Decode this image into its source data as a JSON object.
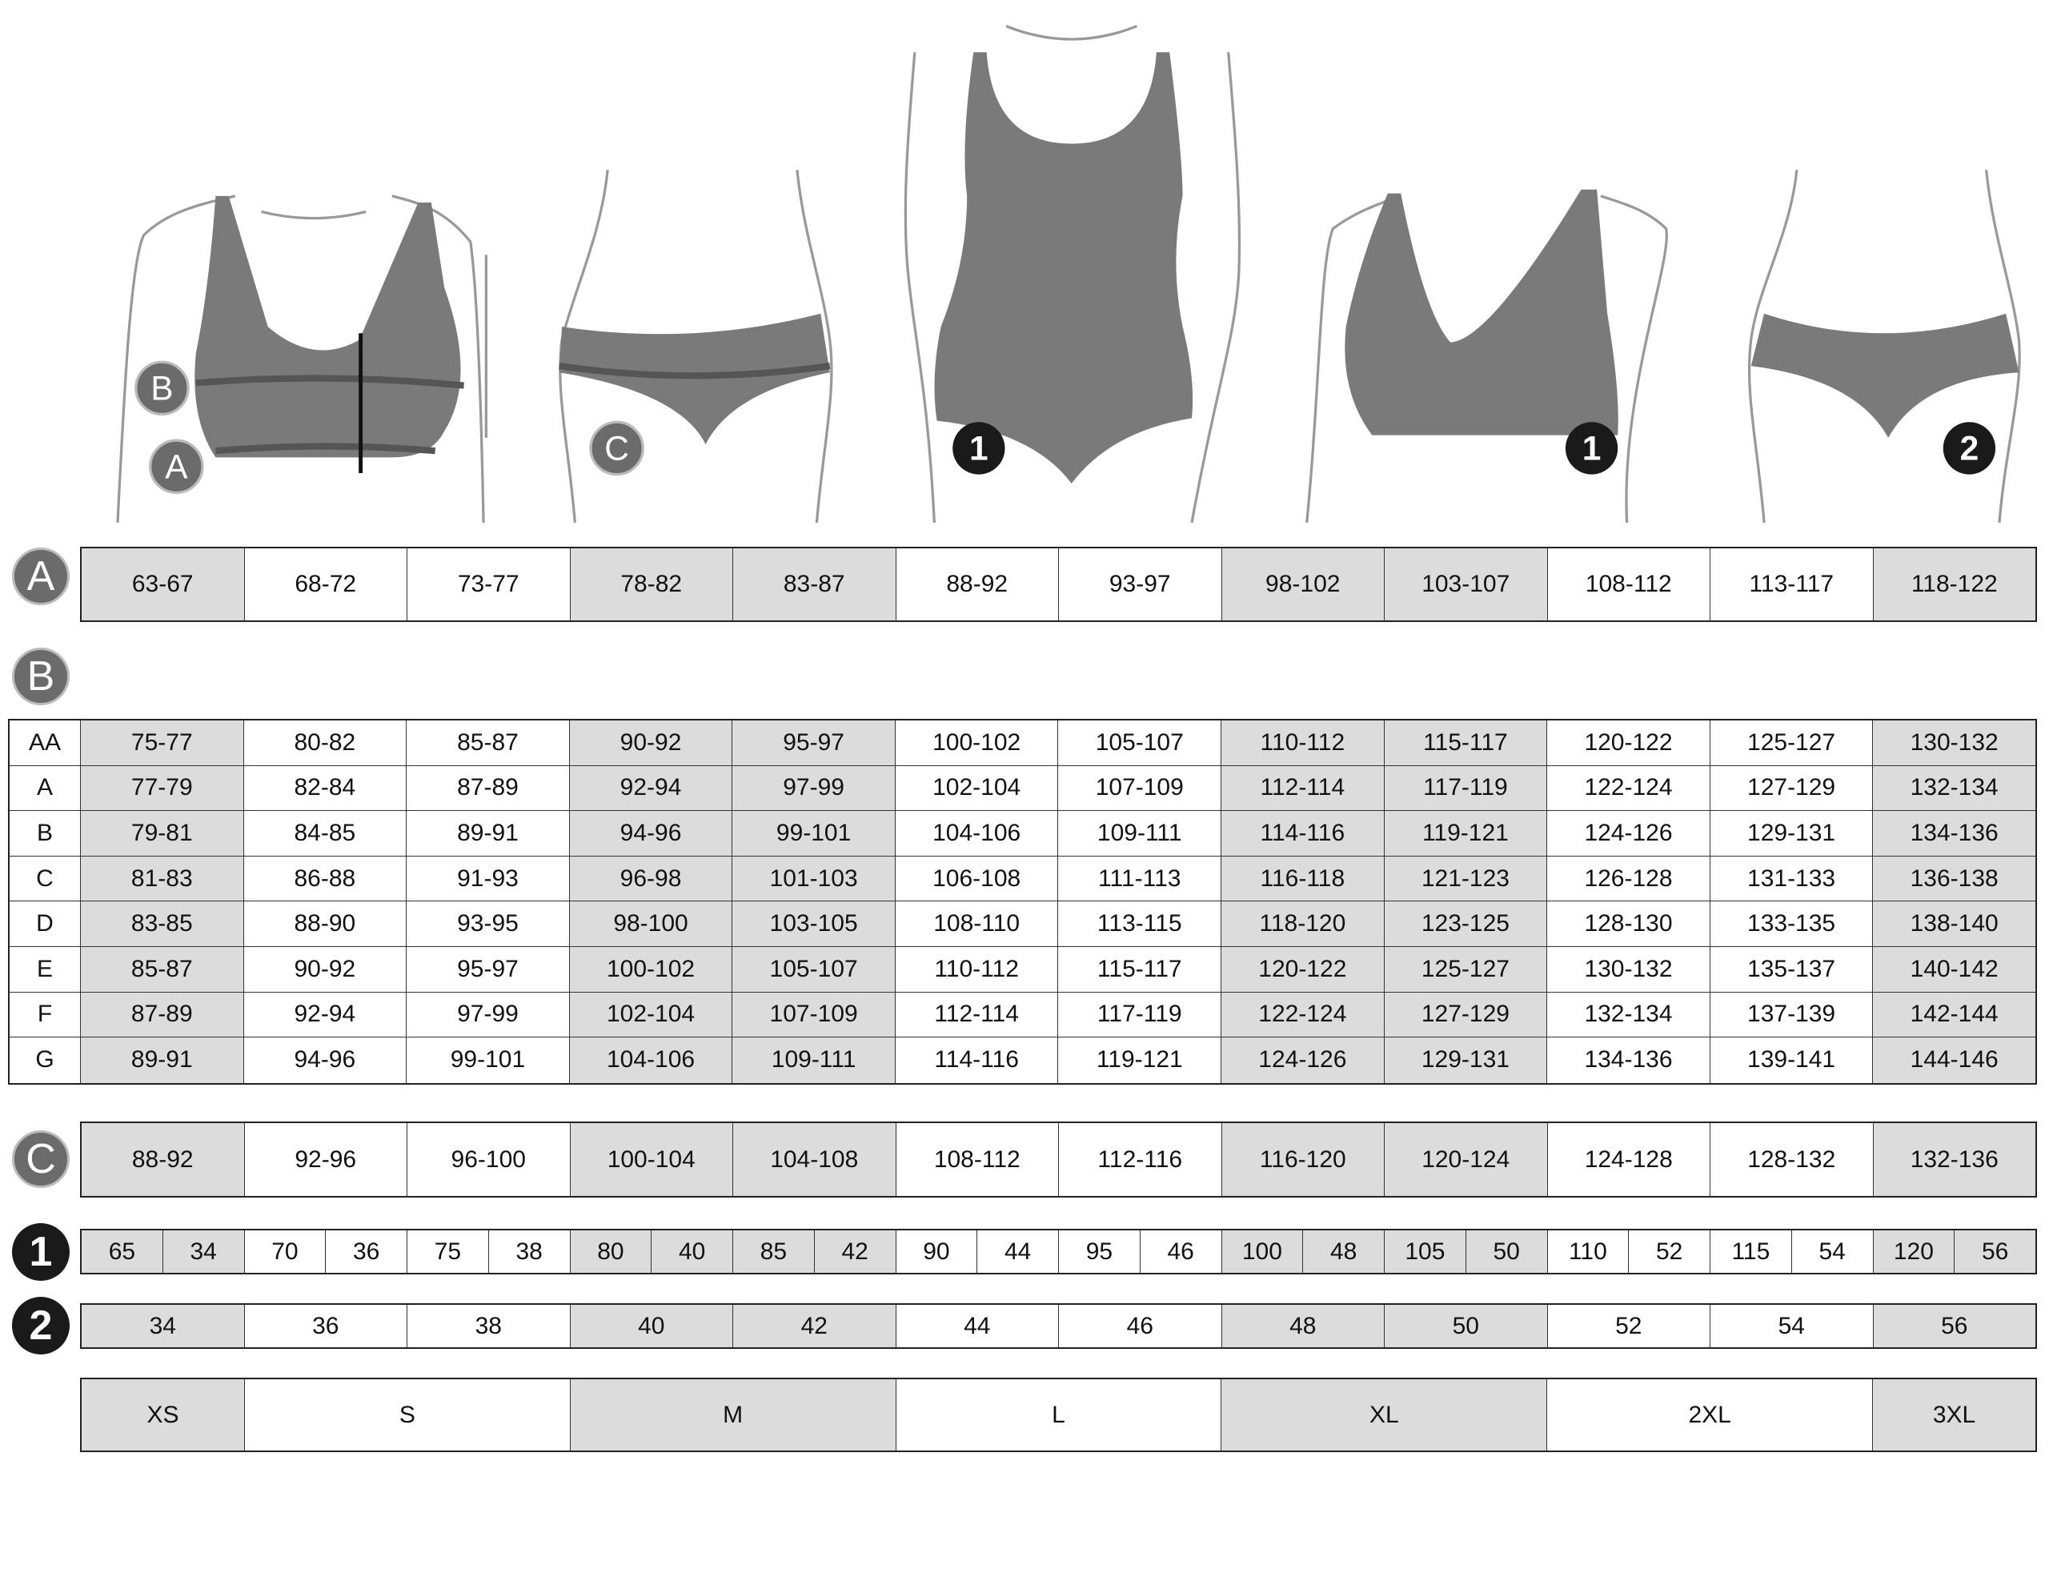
{
  "badges": {
    "a": "A",
    "b": "B",
    "c": "C",
    "one": "1",
    "two": "2"
  },
  "illustration_badges": [
    "B",
    "A",
    "C",
    "1",
    "1",
    "2"
  ],
  "colors": {
    "shaded_cell": "#dcdcdc",
    "garment": "#7a7a7a",
    "badge_gray": "#6b6b6b",
    "badge_black": "#1a1a1a"
  },
  "shaded_columns": [
    0,
    3,
    4,
    7,
    8,
    11
  ],
  "row_a": [
    "63-67",
    "68-72",
    "73-77",
    "78-82",
    "83-87",
    "88-92",
    "93-97",
    "98-102",
    "103-107",
    "108-112",
    "113-117",
    "118-122"
  ],
  "table_b": [
    {
      "cup": "AA",
      "values": [
        "75-77",
        "80-82",
        "85-87",
        "90-92",
        "95-97",
        "100-102",
        "105-107",
        "110-112",
        "115-117",
        "120-122",
        "125-127",
        "130-132"
      ]
    },
    {
      "cup": "A",
      "values": [
        "77-79",
        "82-84",
        "87-89",
        "92-94",
        "97-99",
        "102-104",
        "107-109",
        "112-114",
        "117-119",
        "122-124",
        "127-129",
        "132-134"
      ]
    },
    {
      "cup": "B",
      "values": [
        "79-81",
        "84-85",
        "89-91",
        "94-96",
        "99-101",
        "104-106",
        "109-111",
        "114-116",
        "119-121",
        "124-126",
        "129-131",
        "134-136"
      ]
    },
    {
      "cup": "C",
      "values": [
        "81-83",
        "86-88",
        "91-93",
        "96-98",
        "101-103",
        "106-108",
        "111-113",
        "116-118",
        "121-123",
        "126-128",
        "131-133",
        "136-138"
      ]
    },
    {
      "cup": "D",
      "values": [
        "83-85",
        "88-90",
        "93-95",
        "98-100",
        "103-105",
        "108-110",
        "113-115",
        "118-120",
        "123-125",
        "128-130",
        "133-135",
        "138-140"
      ]
    },
    {
      "cup": "E",
      "values": [
        "85-87",
        "90-92",
        "95-97",
        "100-102",
        "105-107",
        "110-112",
        "115-117",
        "120-122",
        "125-127",
        "130-132",
        "135-137",
        "140-142"
      ]
    },
    {
      "cup": "F",
      "values": [
        "87-89",
        "92-94",
        "97-99",
        "102-104",
        "107-109",
        "112-114",
        "117-119",
        "122-124",
        "127-129",
        "132-134",
        "137-139",
        "142-144"
      ]
    },
    {
      "cup": "G",
      "values": [
        "89-91",
        "94-96",
        "99-101",
        "104-106",
        "109-111",
        "114-116",
        "119-121",
        "124-126",
        "129-131",
        "134-136",
        "139-141",
        "144-146"
      ]
    }
  ],
  "row_c": [
    "88-92",
    "92-96",
    "96-100",
    "100-104",
    "104-108",
    "108-112",
    "112-116",
    "116-120",
    "120-124",
    "124-128",
    "128-132",
    "132-136"
  ],
  "row_1": [
    [
      "65",
      "34"
    ],
    [
      "70",
      "36"
    ],
    [
      "75",
      "38"
    ],
    [
      "80",
      "40"
    ],
    [
      "85",
      "42"
    ],
    [
      "90",
      "44"
    ],
    [
      "95",
      "46"
    ],
    [
      "100",
      "48"
    ],
    [
      "105",
      "50"
    ],
    [
      "110",
      "52"
    ],
    [
      "115",
      "54"
    ],
    [
      "120",
      "56"
    ]
  ],
  "row_2": [
    "34",
    "36",
    "38",
    "40",
    "42",
    "44",
    "46",
    "48",
    "50",
    "52",
    "54",
    "56"
  ],
  "sizes": [
    {
      "label": "XS",
      "span": 1,
      "shaded": true
    },
    {
      "label": "S",
      "span": 2,
      "shaded": false
    },
    {
      "label": "M",
      "span": 2,
      "shaded": true
    },
    {
      "label": "L",
      "span": 2,
      "shaded": false
    },
    {
      "label": "XL",
      "span": 2,
      "shaded": true
    },
    {
      "label": "2XL",
      "span": 2,
      "shaded": false
    },
    {
      "label": "3XL",
      "span": 1,
      "shaded": true
    }
  ]
}
